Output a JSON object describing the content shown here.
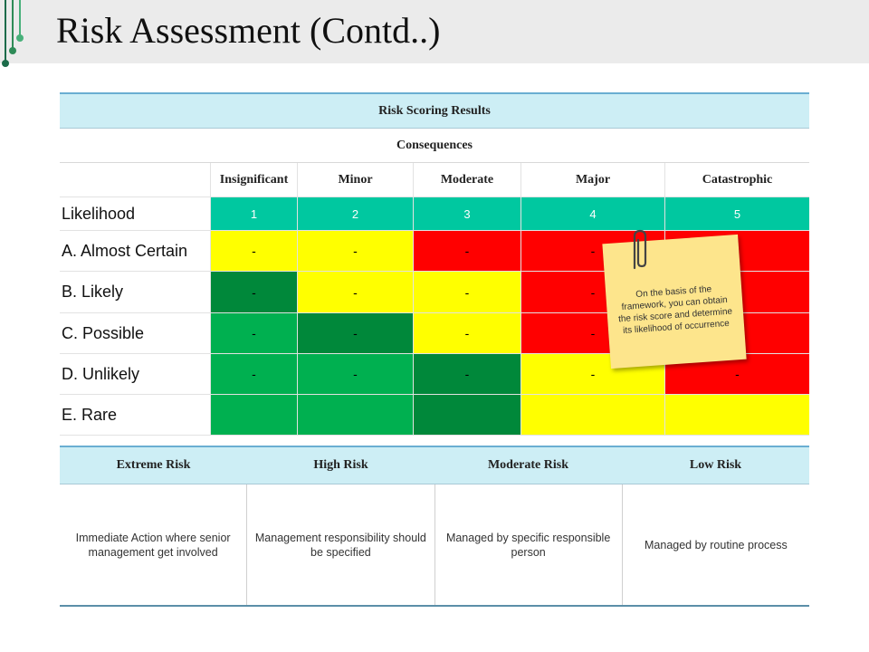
{
  "page": {
    "title": "Risk Assessment (Contd..)"
  },
  "matrix": {
    "title": "Risk Scoring Results",
    "subtitle": "Consequences",
    "columns": [
      "Insignificant",
      "Minor",
      "Moderate",
      "Major",
      "Catastrophic"
    ],
    "likelihood_label": "Likelihood",
    "scores": [
      "1",
      "2",
      "3",
      "4",
      "5"
    ],
    "rows": [
      {
        "label": "A. Almost Certain",
        "cells": [
          {
            "v": "-",
            "color": "#ffff00"
          },
          {
            "v": "-",
            "color": "#ffff00"
          },
          {
            "v": "-",
            "color": "#ff0000"
          },
          {
            "v": "-",
            "color": "#ff0000"
          },
          {
            "v": "-",
            "color": "#ff0000"
          }
        ]
      },
      {
        "label": "B. Likely",
        "cells": [
          {
            "v": "-",
            "color": "#00883a"
          },
          {
            "v": "-",
            "color": "#ffff00"
          },
          {
            "v": "-",
            "color": "#ffff00"
          },
          {
            "v": "-",
            "color": "#ff0000"
          },
          {
            "v": "-",
            "color": "#ff0000"
          }
        ]
      },
      {
        "label": "C. Possible",
        "cells": [
          {
            "v": "-",
            "color": "#00b050"
          },
          {
            "v": "-",
            "color": "#00883a"
          },
          {
            "v": "-",
            "color": "#ffff00"
          },
          {
            "v": "-",
            "color": "#ff0000"
          },
          {
            "v": "-",
            "color": "#ff0000"
          }
        ]
      },
      {
        "label": "D. Unlikely",
        "cells": [
          {
            "v": "-",
            "color": "#00b050"
          },
          {
            "v": "-",
            "color": "#00b050"
          },
          {
            "v": "-",
            "color": "#00883a"
          },
          {
            "v": "-",
            "color": "#ffff00"
          },
          {
            "v": "-",
            "color": "#ff0000"
          }
        ]
      },
      {
        "label": "E. Rare",
        "cells": [
          {
            "v": "",
            "color": "#00b050"
          },
          {
            "v": "",
            "color": "#00b050"
          },
          {
            "v": "",
            "color": "#00883a"
          },
          {
            "v": "",
            "color": "#ffff00"
          },
          {
            "v": "",
            "color": "#ffff00"
          }
        ]
      }
    ],
    "score_row_color": "#00c8a0"
  },
  "note": {
    "text": "On the basis of the framework, you can obtain the risk score and determine its likelihood of occurrence"
  },
  "legend": {
    "headers": [
      "Extreme Risk",
      "High Risk",
      "Moderate Risk",
      "Low Risk"
    ],
    "descriptions": [
      "Immediate Action where senior management get involved",
      "Management responsibility should be specified",
      "Managed by specific responsible person",
      "Managed by routine process"
    ]
  }
}
